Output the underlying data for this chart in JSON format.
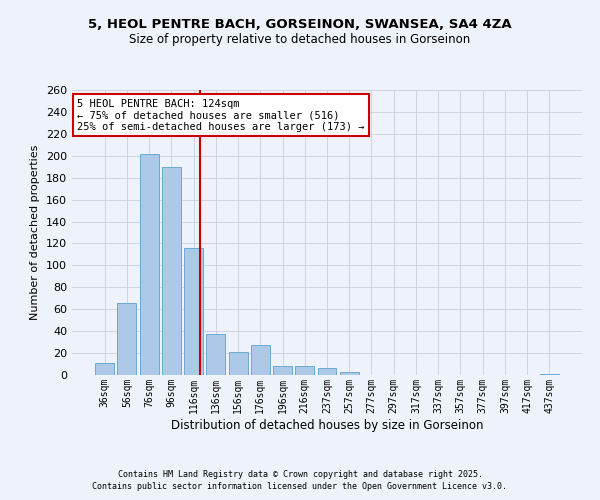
{
  "title": "5, HEOL PENTRE BACH, GORSEINON, SWANSEA, SA4 4ZA",
  "subtitle": "Size of property relative to detached houses in Gorseinon",
  "xlabel": "Distribution of detached houses by size in Gorseinon",
  "ylabel": "Number of detached properties",
  "bar_labels": [
    "36sqm",
    "56sqm",
    "76sqm",
    "96sqm",
    "116sqm",
    "136sqm",
    "156sqm",
    "176sqm",
    "196sqm",
    "216sqm",
    "237sqm",
    "257sqm",
    "277sqm",
    "297sqm",
    "317sqm",
    "337sqm",
    "357sqm",
    "377sqm",
    "397sqm",
    "417sqm",
    "437sqm"
  ],
  "bar_values": [
    11,
    66,
    202,
    190,
    116,
    37,
    21,
    27,
    8,
    8,
    6,
    3,
    0,
    0,
    0,
    0,
    0,
    0,
    0,
    0,
    1
  ],
  "bar_color": "#adc9e8",
  "bar_edge_color": "#6aaad4",
  "vline_color": "#cc0000",
  "annotation_text": "5 HEOL PENTRE BACH: 124sqm\n← 75% of detached houses are smaller (516)\n25% of semi-detached houses are larger (173) →",
  "annotation_box_color": "#ffffff",
  "annotation_box_edge_color": "#cc0000",
  "ylim": [
    0,
    260
  ],
  "yticks": [
    0,
    20,
    40,
    60,
    80,
    100,
    120,
    140,
    160,
    180,
    200,
    220,
    240,
    260
  ],
  "bg_color": "#eef2fb",
  "grid_color": "#c8c8d8",
  "footnote1": "Contains HM Land Registry data © Crown copyright and database right 2025.",
  "footnote2": "Contains public sector information licensed under the Open Government Licence v3.0."
}
